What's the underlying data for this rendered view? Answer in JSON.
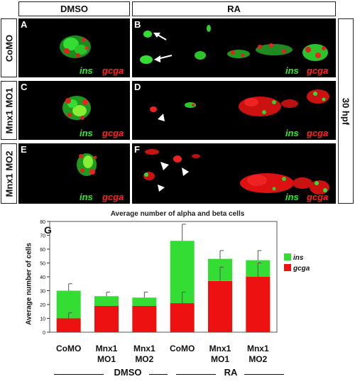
{
  "headers": {
    "left": "DMSO",
    "right": "RA"
  },
  "row_labels": [
    "CoMO",
    "Mnx1 MO1",
    "Mnx1 MO2"
  ],
  "time_label": "30 hpf",
  "panels": [
    {
      "id": "panel-a",
      "label": "A"
    },
    {
      "id": "panel-b",
      "label": "B"
    },
    {
      "id": "panel-c",
      "label": "C"
    },
    {
      "id": "panel-d",
      "label": "D"
    },
    {
      "id": "panel-e",
      "label": "E"
    },
    {
      "id": "panel-f",
      "label": "F"
    }
  ],
  "markers": {
    "ins": "ins",
    "gcga": "gcga"
  },
  "colors": {
    "ins": "#33dd33",
    "gcga": "#ee1111"
  },
  "figure_label": "G",
  "chart_data": {
    "type": "bar",
    "stacked": true,
    "title": "Average number of alpha and beta cells",
    "ylabel": "Average number of cells",
    "xlabel": "",
    "ylim": [
      0,
      80
    ],
    "yticks": [
      0,
      10,
      20,
      30,
      40,
      50,
      60,
      70,
      80
    ],
    "grid": false,
    "legend": "right",
    "categories": [
      "CoMO",
      "Mnx1 MO1",
      "Mnx1 MO2",
      "CoMO",
      "Mnx1 MO1",
      "Mnx1 MO2"
    ],
    "series": [
      {
        "name": "ins",
        "color": "#33dd33",
        "values": [
          20,
          7,
          6,
          45,
          16,
          12
        ],
        "error": [
          5,
          3,
          4,
          12,
          6,
          7
        ]
      },
      {
        "name": "gcga",
        "color": "#ee1111",
        "values": [
          10,
          19,
          19,
          21,
          37,
          40
        ],
        "error": [
          4,
          0,
          0,
          8,
          10,
          10
        ]
      }
    ],
    "groups": [
      {
        "label": "DMSO",
        "categories": [
          0,
          1,
          2
        ]
      },
      {
        "label": "RA",
        "categories": [
          3,
          4,
          5
        ]
      }
    ]
  }
}
